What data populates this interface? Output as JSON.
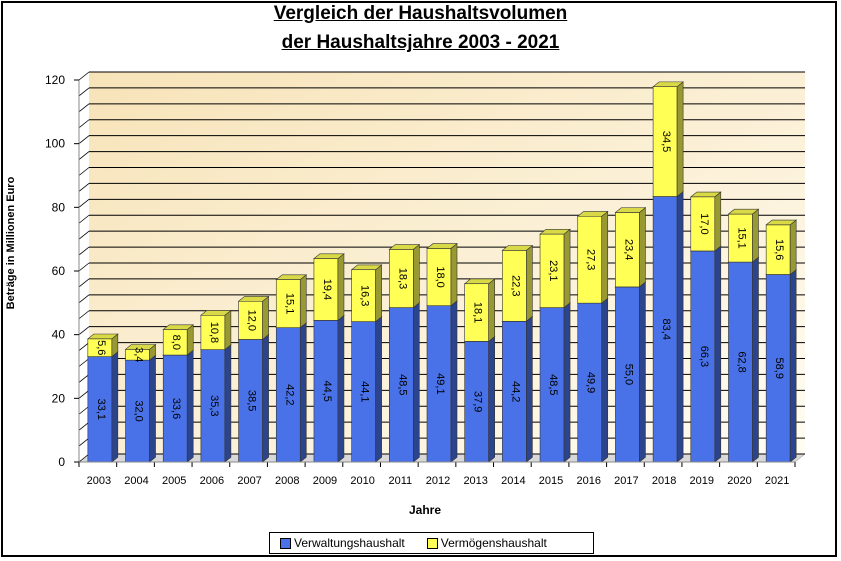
{
  "title": {
    "line1": "Vergleich der Haushaltsvolumen",
    "line2": "der Haushaltsjahre 2003 - 2021"
  },
  "legend": {
    "items": [
      {
        "label": "Verwaltungshaushalt",
        "color": "#4A72E8"
      },
      {
        "label": "Vermögenshaushalt",
        "color": "#FFFF55"
      }
    ]
  },
  "colors": {
    "plot_background": "#FBEFD5",
    "grid": "#000000",
    "series1": "#4A72E8",
    "series2": "#FFFF55"
  },
  "chart_data": {
    "type": "bar",
    "stacked": true,
    "categories": [
      "2003",
      "2004",
      "2005",
      "2006",
      "2007",
      "2008",
      "2009",
      "2010",
      "2011",
      "2012",
      "2013",
      "2014",
      "2015",
      "2016",
      "2017",
      "2018",
      "2019",
      "2020",
      "2021"
    ],
    "series": [
      {
        "name": "Verwaltungshaushalt",
        "values": [
          33.1,
          32.0,
          33.6,
          35.3,
          38.5,
          42.2,
          44.5,
          44.1,
          48.5,
          49.1,
          37.9,
          44.2,
          48.5,
          49.9,
          55.0,
          83.4,
          66.3,
          62.8,
          58.9
        ],
        "labels": [
          "33,1",
          "32,0",
          "33,6",
          "35,3",
          "38,5",
          "42,2",
          "44,5",
          "44,1",
          "48,5",
          "49,1",
          "37,9",
          "44,2",
          "48,5",
          "49,9",
          "55,0",
          "83,4",
          "66,3",
          "62,8",
          "58,9"
        ]
      },
      {
        "name": "Vermögenshaushalt",
        "values": [
          5.6,
          3.4,
          8.0,
          10.8,
          12.0,
          15.1,
          19.4,
          16.3,
          18.3,
          18.0,
          18.1,
          22.3,
          23.1,
          27.3,
          23.4,
          34.5,
          17.0,
          15.1,
          15.6
        ],
        "labels": [
          "5,6",
          "3,4",
          "8,0",
          "10,8",
          "12,0",
          "15,1",
          "19,4",
          "16,3",
          "18,3",
          "18,0",
          "18,1",
          "22,3",
          "23,1",
          "27,3",
          "23,4",
          "34,5",
          "17,0",
          "15,1",
          "15,6"
        ]
      }
    ],
    "xlabel": "Jahre",
    "ylabel": "Beträge in Millionen Euro",
    "ylim": [
      0,
      120
    ],
    "yticks": [
      0,
      20,
      40,
      60,
      80,
      100,
      120
    ],
    "grid": true,
    "legend_position": "bottom"
  }
}
